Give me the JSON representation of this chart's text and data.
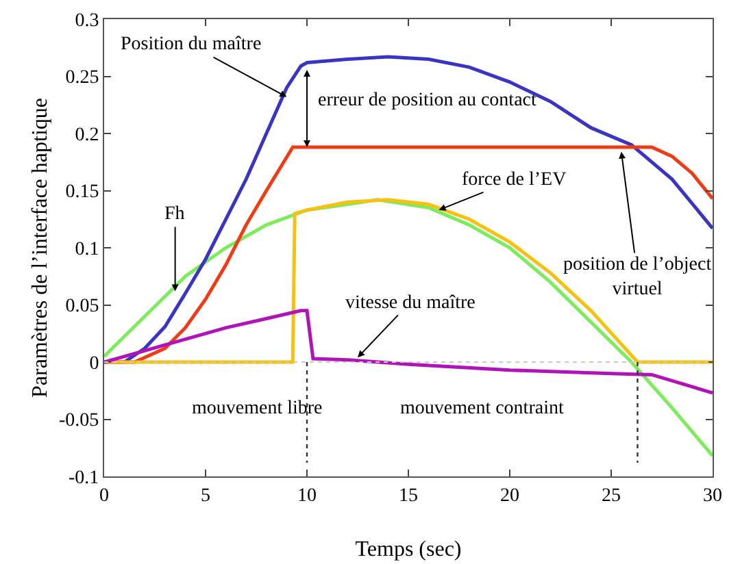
{
  "chart_data": {
    "type": "line",
    "xlabel": "Temps (sec)",
    "ylabel": "Paramètres de l’interface haptique",
    "xlim": [
      0,
      30
    ],
    "xticks": [
      0,
      5,
      10,
      15,
      20,
      25,
      30
    ],
    "ylim": [
      -0.1,
      0.3
    ],
    "yticks": [
      -0.1,
      -0.05,
      0,
      0.05,
      0.1,
      0.15,
      0.2,
      0.25,
      0.3
    ],
    "marker": "none",
    "line_style": "solid",
    "series": [
      {
        "color": "#7cec5c",
        "x": [
          0,
          2,
          4,
          6,
          8,
          10,
          12,
          13.5,
          16,
          18,
          20,
          22,
          24,
          26,
          28,
          30
        ],
        "values": [
          0.005,
          0.04,
          0.075,
          0.1,
          0.12,
          0.133,
          0.138,
          0.142,
          0.135,
          0.12,
          0.1,
          0.07,
          0.035,
          0,
          -0.04,
          -0.082
        ]
      },
      {
        "color": "#3a34c4",
        "x": [
          0,
          1,
          2,
          3,
          4,
          5,
          6,
          7,
          8,
          9,
          9.7,
          10,
          12,
          14,
          16,
          18,
          20,
          22,
          24,
          26,
          28,
          30
        ],
        "values": [
          0,
          0,
          0.012,
          0.031,
          0.06,
          0.09,
          0.125,
          0.16,
          0.2,
          0.24,
          0.259,
          0.262,
          0.265,
          0.267,
          0.265,
          0.258,
          0.245,
          0.228,
          0.205,
          0.19,
          0.16,
          0.117
        ]
      },
      {
        "color": "#f03c14",
        "x": [
          0,
          1.5,
          3,
          4,
          5,
          6,
          7,
          8,
          9.3,
          27,
          28,
          29,
          30
        ],
        "values": [
          0,
          0,
          0.012,
          0.03,
          0.055,
          0.085,
          0.12,
          0.15,
          0.188,
          0.188,
          0.18,
          0.165,
          0.143
        ]
      },
      {
        "color": "#f8c010",
        "x": [
          0,
          9.3,
          9.4,
          10,
          12,
          14,
          16,
          18,
          20,
          22,
          24,
          26.3,
          30
        ],
        "values": [
          0,
          0,
          0.13,
          0.133,
          0.14,
          0.142,
          0.138,
          0.125,
          0.105,
          0.078,
          0.045,
          0,
          0
        ]
      },
      {
        "color": "#b014b8",
        "x": [
          0,
          2,
          4,
          6,
          8,
          9.7,
          10,
          10.3,
          12,
          15,
          20,
          25,
          27,
          30
        ],
        "values": [
          0,
          0.01,
          0.02,
          0.03,
          0.038,
          0.045,
          0.045,
          0.003,
          0.002,
          -0.002,
          -0.007,
          -0.01,
          -0.011,
          -0.027
        ]
      }
    ],
    "ref_lines": [
      {
        "axis": "y",
        "value": 0,
        "color": "#c8c8c8",
        "line_style": "dotted"
      },
      {
        "axis": "x",
        "value": 10,
        "color": "#333333",
        "line_style": "dotted"
      },
      {
        "axis": "x",
        "value": 26.3,
        "color": "#333333",
        "line_style": "dotted"
      }
    ],
    "annotations": [
      {
        "text": "Position du maître",
        "x": 9,
        "y": 0.232
      },
      {
        "text": "erreur de position au contact",
        "x": 10,
        "y": 0.188
      },
      {
        "text": "Fh",
        "x": 3.5,
        "y": 0.062
      },
      {
        "text": "force de l’EV",
        "x": 16.5,
        "y": 0.133
      },
      {
        "text": "position de l’object virtuel",
        "x": 25.5,
        "y": 0.184
      },
      {
        "text": "vitesse du maître",
        "x": 12.5,
        "y": 0.004
      },
      "mouvement libre",
      "mouvement contraint"
    ]
  }
}
